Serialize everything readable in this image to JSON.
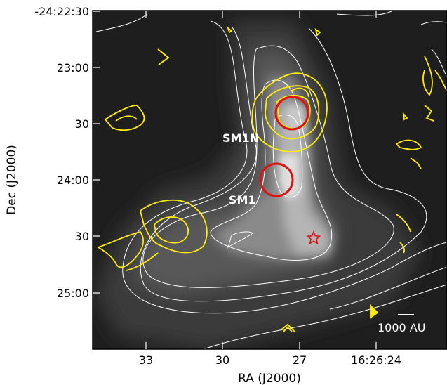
{
  "figure": {
    "x_axis_title": "RA (J2000)",
    "y_axis_title": "Dec (J2000)",
    "x_ticks": [
      "33",
      "30",
      "27",
      "16:26:24"
    ],
    "y_ticks": [
      "-24:22:30",
      "23:00",
      "30",
      "24:00",
      "30",
      "25:00"
    ],
    "sources": [
      {
        "label": "SM1N"
      },
      {
        "label": "SM1"
      }
    ],
    "scale_bar_label": "1000 AU",
    "colors": {
      "background": "#1e1e1e",
      "white_contour": "#ffffff",
      "yellow_contour": "#ffee00",
      "marker": "#e11111"
    },
    "marker_icons": [
      "circle-marker",
      "circle-marker",
      "star-marker"
    ]
  }
}
